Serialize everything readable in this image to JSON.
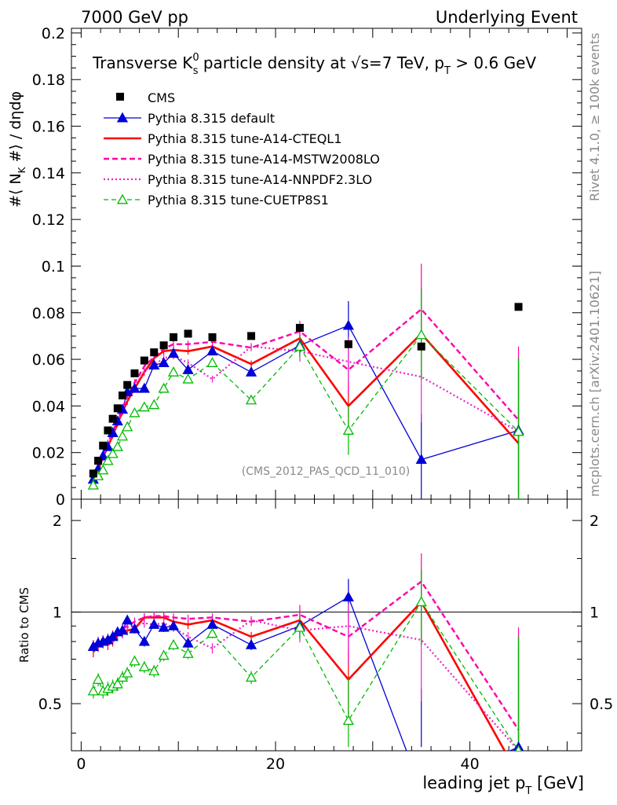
{
  "chart_data": {
    "type": "line",
    "header_left": "7000 GeV pp",
    "header_right": "Underlying Event",
    "title": "Transverse K",
    "title_sup": "0",
    "title_sub": "s",
    "title_rest": " particle density at √s=7 TeV, p",
    "title_pt_sub": "T",
    "title_end": " > 0.6 GeV",
    "ylabel_main": "#⟨ N",
    "ylabel_sub": "K",
    "ylabel_rest": " #⟩ / dηdφ",
    "ylabel_ratio": "Ratio to CMS",
    "xlabel": "leading jet p",
    "xlabel_sub": "T",
    "xlabel_end": " [GeV]",
    "analysis_tag": "(CMS_2012_PAS_QCD_11_010)",
    "side_label_top": "Rivet 4.1.0, ≥ 100k events",
    "side_label_bottom": "mcplots.cern.ch [arXiv:2401.10621]",
    "xlim": [
      -1,
      51.5
    ],
    "ylim_main": [
      0,
      0.202
    ],
    "ylim_ratio": [
      0.35,
      2.35
    ],
    "x_ticks": [
      "0",
      "20",
      "40"
    ],
    "y_ticks_main": [
      "0",
      "0.02",
      "0.04",
      "0.06",
      "0.08",
      "0.1",
      "0.12",
      "0.14",
      "0.16",
      "0.18",
      "0.2"
    ],
    "y_ticks_ratio": [
      "0.5",
      "1",
      "2"
    ],
    "x": [
      1.25,
      1.75,
      2.25,
      2.75,
      3.25,
      3.75,
      4.25,
      4.75,
      5.5,
      6.5,
      7.5,
      8.5,
      9.5,
      11,
      13.5,
      17.5,
      22.5,
      27.5,
      35,
      45
    ],
    "data": {
      "name": "CMS",
      "values": [
        0.011,
        0.0165,
        0.023,
        0.0295,
        0.0345,
        0.039,
        0.0445,
        0.049,
        0.054,
        0.0595,
        0.063,
        0.066,
        0.0695,
        0.071,
        0.0695,
        0.07,
        0.0735,
        0.0665,
        0.0655,
        0.0825
      ]
    },
    "series": [
      {
        "name": "Pythia 8.315 default",
        "color": "#0000d8",
        "values": [
          0.0085,
          0.013,
          0.0185,
          0.0225,
          0.0285,
          0.0335,
          0.0385,
          0.046,
          0.0475,
          0.0475,
          0.0575,
          0.0585,
          0.0625,
          0.0555,
          0.0635,
          0.0545,
          0.066,
          0.0745,
          0.017,
          0.0295
        ],
        "ratio": [
          0.77,
          0.79,
          0.8,
          0.81,
          0.83,
          0.86,
          0.87,
          0.94,
          0.88,
          0.8,
          0.91,
          0.89,
          0.9,
          0.79,
          0.91,
          0.78,
          0.9,
          1.12,
          0.26,
          0.36
        ]
      },
      {
        "name": "Pythia 8.315 tune-A14-CTEQL1",
        "color": "#ff0000",
        "values": [
          0.008,
          0.0125,
          0.018,
          0.0225,
          0.0275,
          0.0325,
          0.0375,
          0.042,
          0.0475,
          0.0545,
          0.0605,
          0.0635,
          0.064,
          0.0635,
          0.0655,
          0.058,
          0.069,
          0.04,
          0.071,
          0.024
        ],
        "ratio": [
          0.74,
          0.77,
          0.79,
          0.78,
          0.8,
          0.84,
          0.85,
          0.87,
          0.88,
          0.96,
          0.96,
          0.96,
          0.93,
          0.91,
          0.94,
          0.83,
          0.94,
          0.6,
          1.08,
          0.29
        ]
      },
      {
        "name": "Pythia 8.315 tune-A14-MSTW2008LO",
        "color": "#ff00aa",
        "values": [
          0.0085,
          0.0135,
          0.0185,
          0.024,
          0.029,
          0.034,
          0.039,
          0.044,
          0.05,
          0.057,
          0.061,
          0.0645,
          0.0665,
          0.0665,
          0.0675,
          0.065,
          0.072,
          0.0555,
          0.0815,
          0.034
        ],
        "ratio": [
          0.78,
          0.8,
          0.81,
          0.82,
          0.84,
          0.86,
          0.88,
          0.9,
          0.93,
          0.96,
          0.97,
          0.97,
          0.96,
          0.95,
          0.96,
          0.93,
          0.98,
          0.83,
          1.26,
          0.41
        ]
      },
      {
        "name": "Pythia 8.315 tune-A14-NNPDF2.3LO",
        "color": "#ee22cc",
        "values": [
          0.0085,
          0.013,
          0.018,
          0.0235,
          0.028,
          0.033,
          0.038,
          0.0435,
          0.0485,
          0.055,
          0.0575,
          0.0605,
          0.0615,
          0.0585,
          0.0515,
          0.0655,
          0.0635,
          0.059,
          0.0525,
          0.029
        ],
        "ratio": [
          0.78,
          0.79,
          0.8,
          0.8,
          0.82,
          0.85,
          0.86,
          0.89,
          0.9,
          0.92,
          0.91,
          0.92,
          0.89,
          0.83,
          0.76,
          0.94,
          0.87,
          0.9,
          0.81,
          0.35
        ]
      },
      {
        "name": "Pythia 8.315 tune-CUETP8S1",
        "color": "#00bb00",
        "values": [
          0.006,
          0.01,
          0.0125,
          0.0165,
          0.0195,
          0.0225,
          0.027,
          0.031,
          0.037,
          0.0395,
          0.0405,
          0.0475,
          0.0545,
          0.0515,
          0.0585,
          0.0425,
          0.0655,
          0.0295,
          0.0705,
          0.029
        ],
        "ratio": [
          0.55,
          0.6,
          0.55,
          0.56,
          0.57,
          0.58,
          0.61,
          0.63,
          0.69,
          0.66,
          0.64,
          0.72,
          0.78,
          0.73,
          0.85,
          0.61,
          0.89,
          0.44,
          1.08,
          0.35
        ]
      }
    ]
  }
}
